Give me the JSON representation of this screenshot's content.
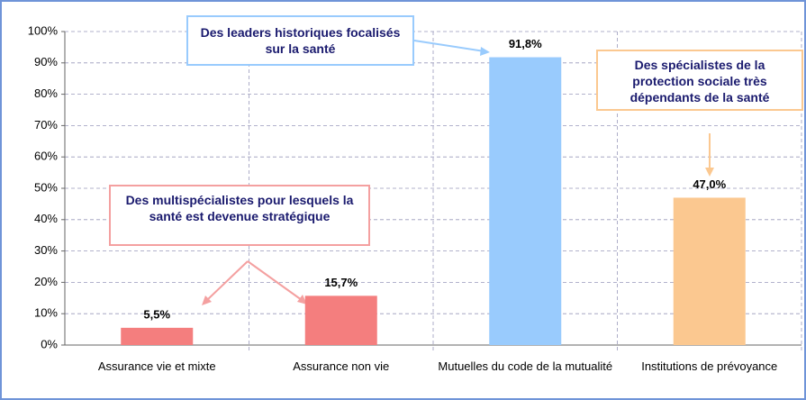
{
  "chart_data": {
    "type": "bar",
    "categories": [
      "Assurance vie et mixte",
      "Assurance non vie",
      "Mutuelles du code de la mutualité",
      "Institutions de prévoyance"
    ],
    "values": [
      5.5,
      15.7,
      91.8,
      47.0
    ],
    "value_labels": [
      "5,5%",
      "15,7%",
      "91,8%",
      "47,0%"
    ],
    "colors": [
      "#f47e7e",
      "#f47e7e",
      "#99cbfd",
      "#fbc890"
    ],
    "ylim": [
      0,
      100
    ],
    "yticks": [
      {
        "value": 0,
        "label": "0%"
      },
      {
        "value": 10,
        "label": "10%"
      },
      {
        "value": 20,
        "label": "20%"
      },
      {
        "value": 30,
        "label": "30%"
      },
      {
        "value": 40,
        "label": "40%"
      },
      {
        "value": 50,
        "label": "50%"
      },
      {
        "value": 60,
        "label": "60%"
      },
      {
        "value": 70,
        "label": "70%"
      },
      {
        "value": 80,
        "label": "80%"
      },
      {
        "value": 90,
        "label": "90%"
      },
      {
        "value": 100,
        "label": "100%"
      }
    ],
    "grid": true,
    "annotations": [
      {
        "text": "Des leaders historiques focalisés sur la santé",
        "color": "#99cbfd"
      },
      {
        "text": "Des multispécialistes pour lesquels la santé est devenue stratégique",
        "color": "#f4a0a0"
      },
      {
        "text": "Des spécialistes de la protection sociale très dépendants de la santé",
        "color": "#fbc890"
      }
    ]
  }
}
